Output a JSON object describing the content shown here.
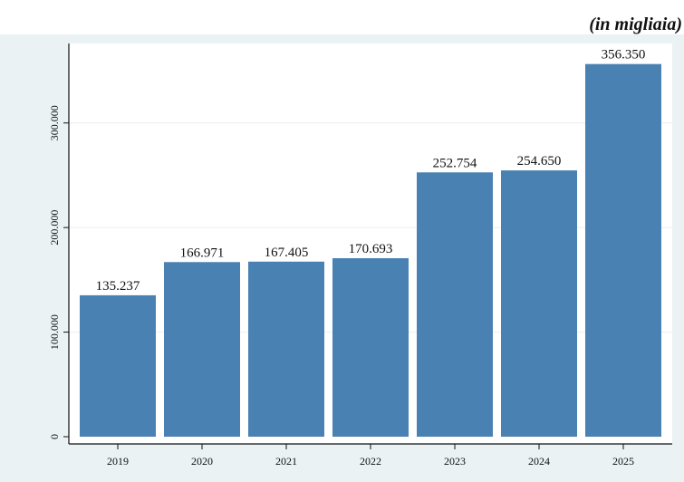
{
  "header": {
    "unit_note": "(in migliaia)"
  },
  "chart_data": {
    "type": "bar",
    "categories": [
      "2019",
      "2020",
      "2021",
      "2022",
      "2023",
      "2024",
      "2025"
    ],
    "values": [
      135237,
      166971,
      167405,
      170693,
      252754,
      254650,
      356350
    ],
    "value_labels": [
      "135.237",
      "166.971",
      "167.405",
      "170.693",
      "252.754",
      "254.650",
      "356.350"
    ],
    "y_ticks": [
      0,
      100000,
      200000,
      300000
    ],
    "y_tick_labels": [
      "0",
      "100.000",
      "200.000",
      "300.000"
    ],
    "ylim": [
      0,
      376000
    ],
    "title": "",
    "xlabel": "",
    "ylabel": "",
    "grid": true,
    "colors": {
      "bar": "#4a81b3",
      "plot_background": "#ffffff",
      "outer_background": "#eaf2f3",
      "grid": "#e9eef0",
      "axis": "#111111"
    }
  }
}
